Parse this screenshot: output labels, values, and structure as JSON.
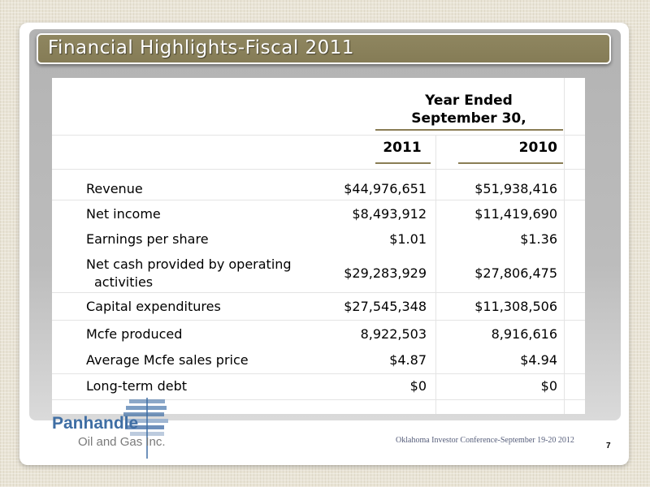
{
  "slide": {
    "title": "Financial Highlights-Fiscal 2011",
    "page_number": "7",
    "footer": "Oklahoma Investor Conference-September 19-20 2012"
  },
  "table": {
    "header_line1": "Year Ended",
    "header_line2": "September 30,",
    "col_2011": "2011",
    "col_2010": "2010",
    "rows": [
      {
        "label": "Revenue",
        "v2011": "$44,976,651",
        "v2010": "$51,938,416"
      },
      {
        "label": "Net income",
        "v2011": "$8,493,912",
        "v2010": "$11,419,690"
      },
      {
        "label": "Earnings per share",
        "v2011": "$1.01",
        "v2010": "$1.36"
      },
      {
        "label_line1": "Net cash provided by operating",
        "label_line2": "activities",
        "v2011": "$29,283,929",
        "v2010": "$27,806,475"
      },
      {
        "label": "Capital expenditures",
        "v2011": "$27,545,348",
        "v2010": "$11,308,506"
      },
      {
        "label": "Mcfe produced",
        "v2011": "8,922,503",
        "v2010": "8,916,616"
      },
      {
        "label": "Average Mcfe sales price",
        "v2011": "$4.87",
        "v2010": "$4.94"
      },
      {
        "label": "Long-term debt",
        "v2011": "$0",
        "v2010": "$0"
      }
    ]
  },
  "logo": {
    "name": "Panhandle",
    "subtitle": "Oil and Gas Inc."
  },
  "colors": {
    "title_bar": "#8a8158",
    "logo_blue": "#3f6ea4",
    "underline": "#8a7d55"
  }
}
